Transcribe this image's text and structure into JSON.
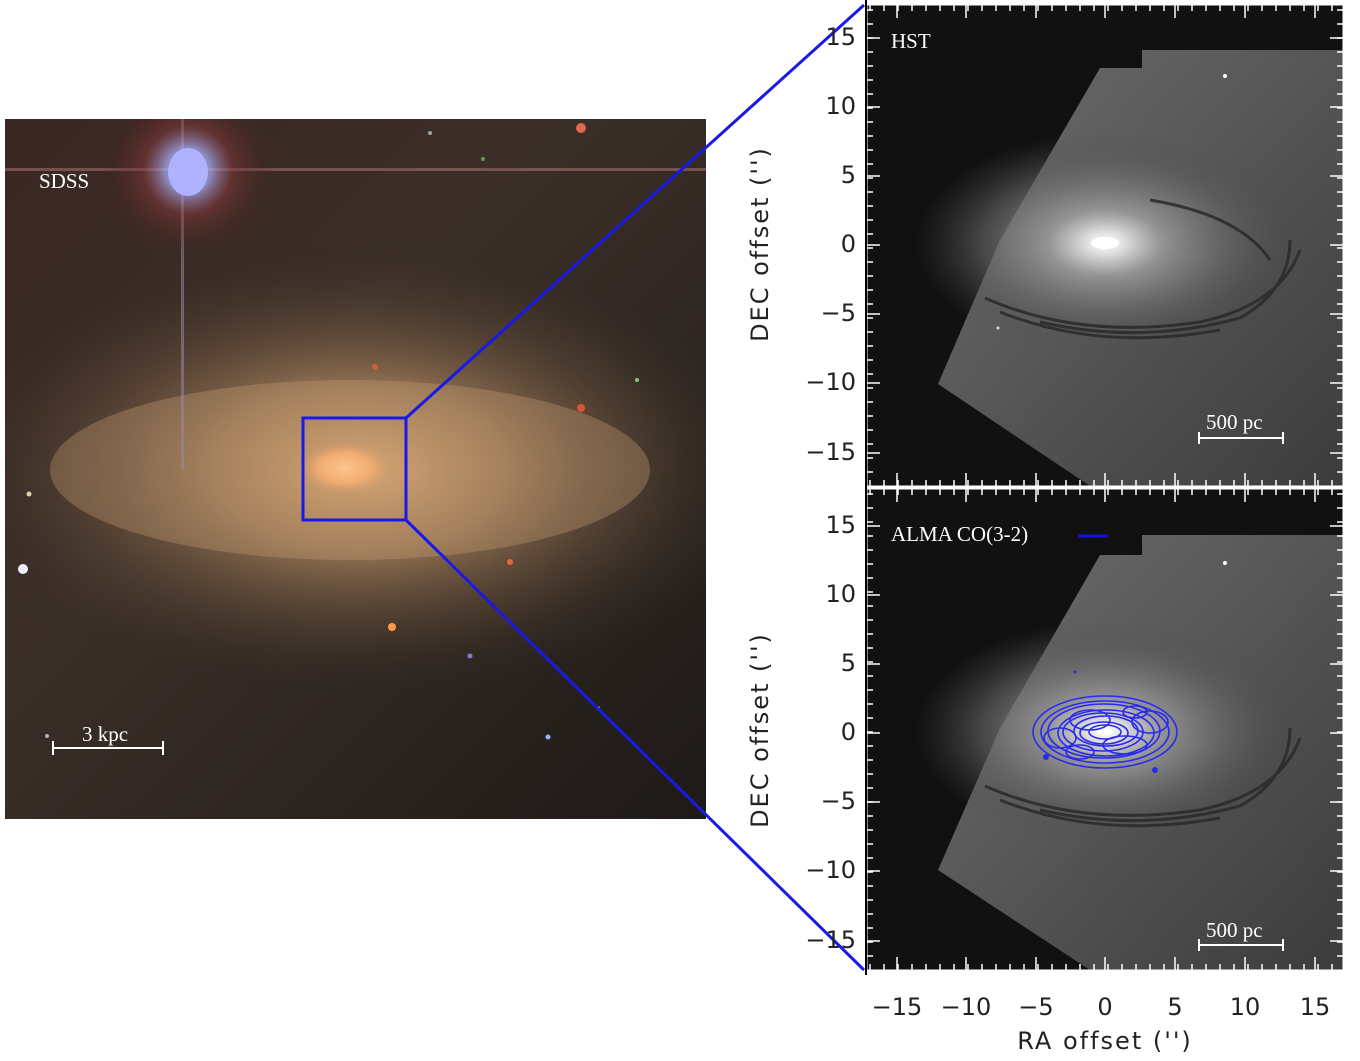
{
  "sdss_panel": {
    "label": "SDSS",
    "scalebar_label": "3 kpc"
  },
  "hst_panel": {
    "label": "HST",
    "scalebar_label": "500 pc"
  },
  "alma_panel": {
    "legend_label": "ALMA CO(3-2)",
    "legend_color": "#1010e0",
    "scalebar_label": "500 pc"
  },
  "axes": {
    "ylabel": "DEC offset ('')",
    "xlabel": "RA offset ('')",
    "yticks_top": [
      "15",
      "10",
      "5",
      "0",
      "−5",
      "−10",
      "−15"
    ],
    "yticks_bottom": [
      "15",
      "10",
      "5",
      "0",
      "−5",
      "−10",
      "−15"
    ],
    "xticks": [
      "−15",
      "−10",
      "−5",
      "0",
      "5",
      "10",
      "15"
    ]
  },
  "colors": {
    "zoom_box": "#1a1ae6",
    "contour": "#2a2aee"
  }
}
